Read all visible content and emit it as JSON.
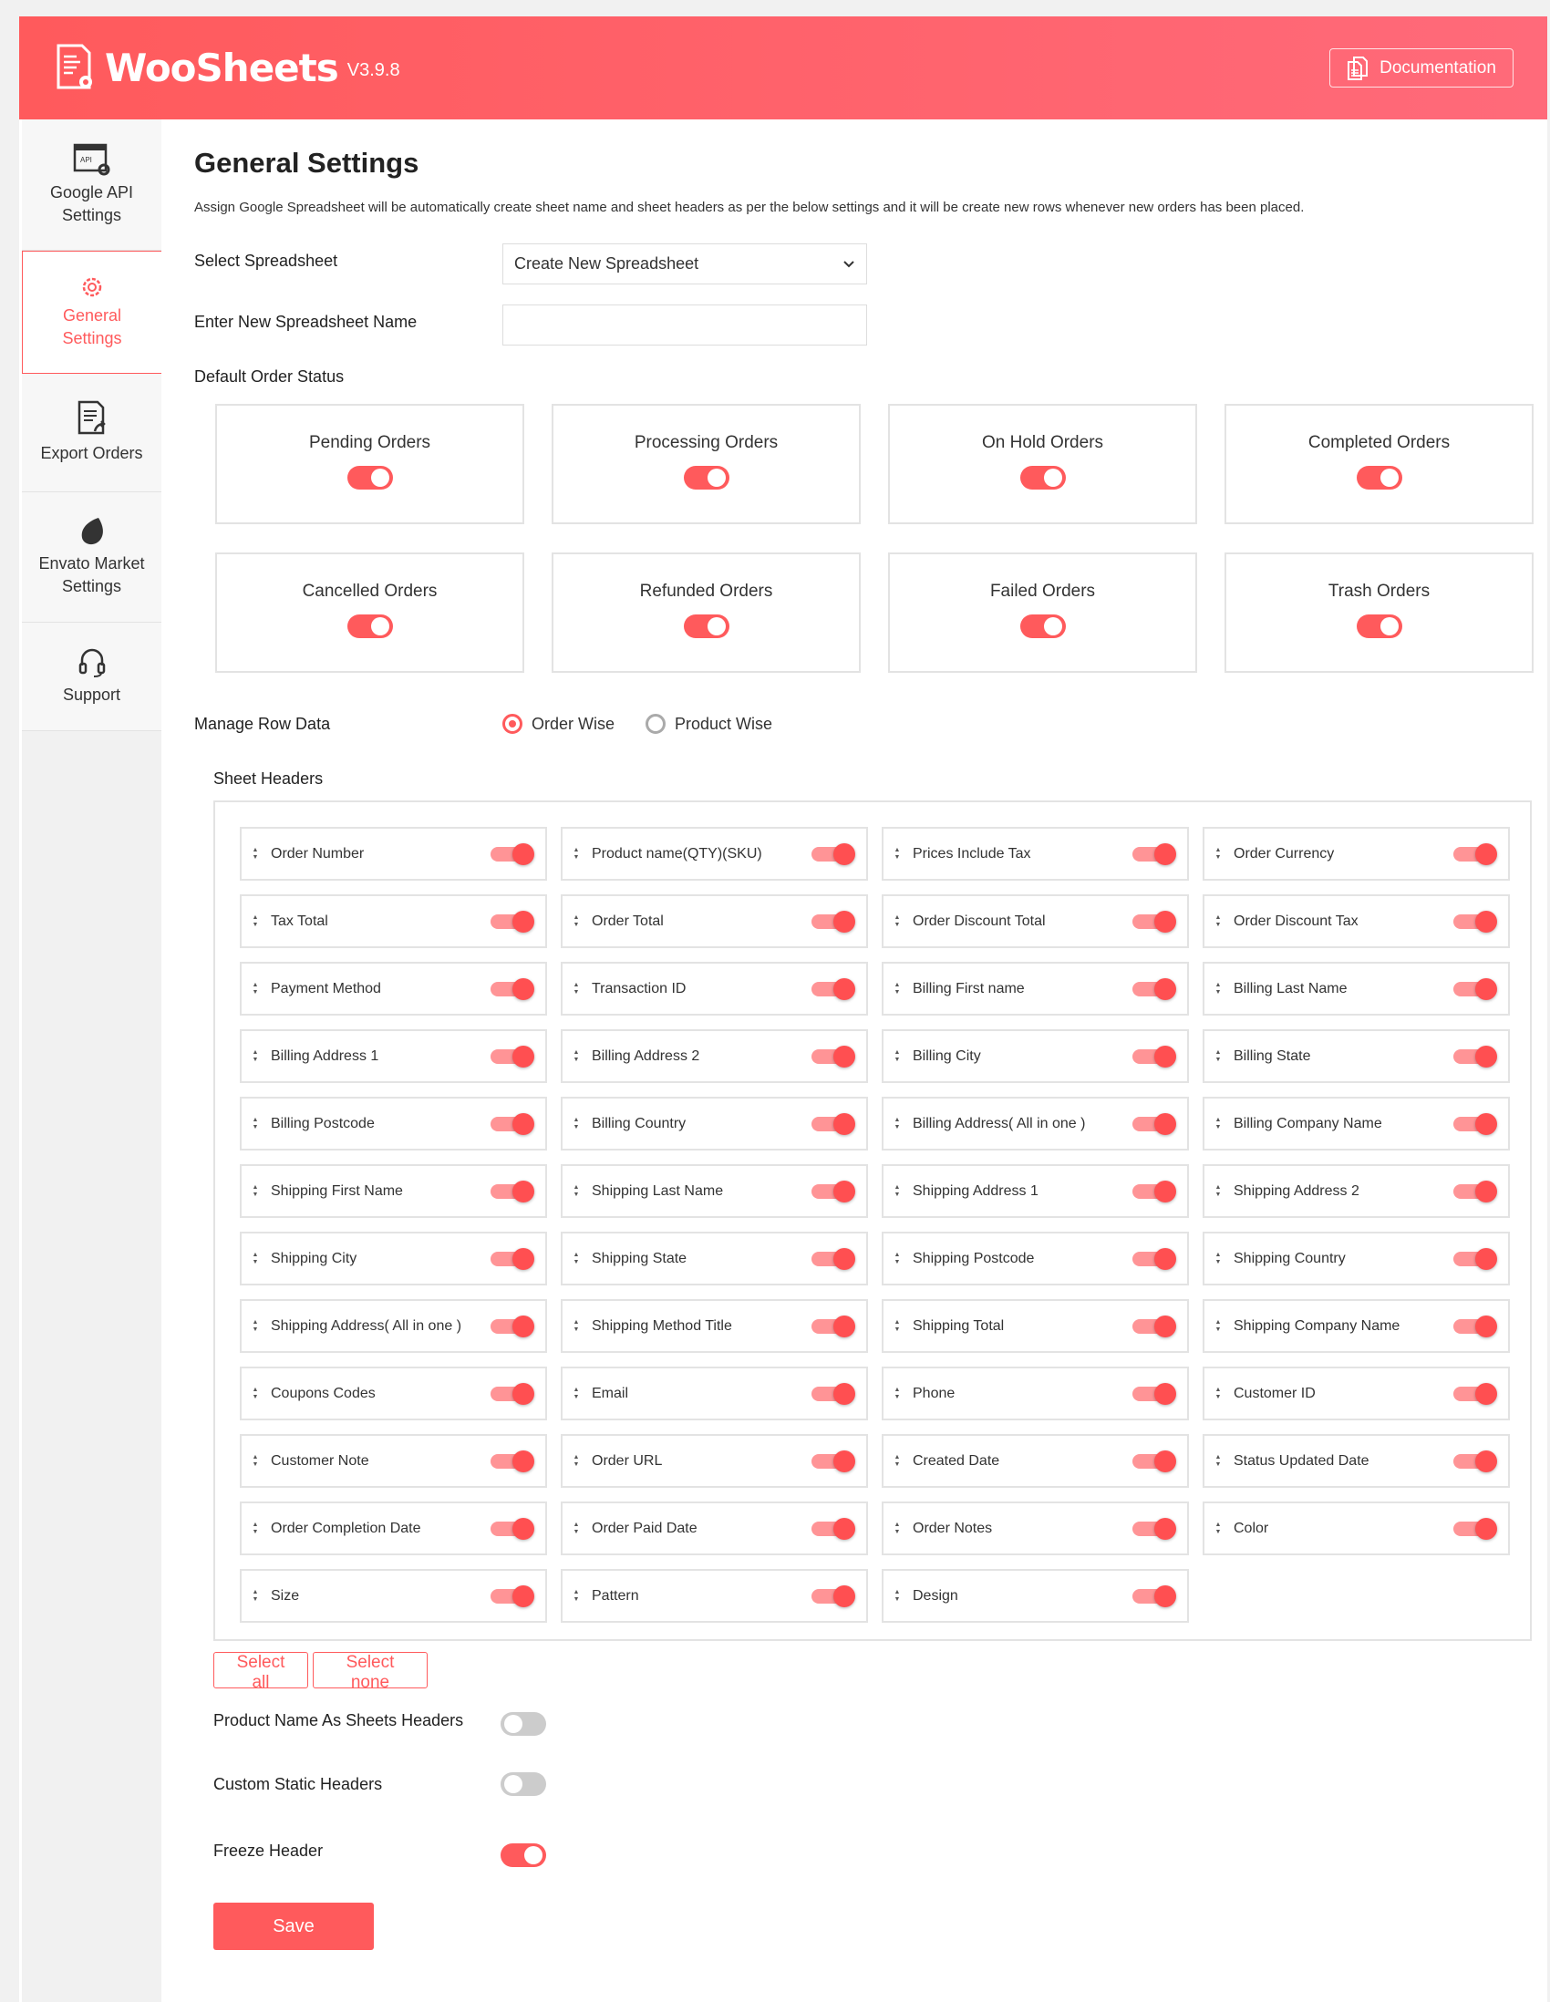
{
  "header": {
    "brand": "WooSheets",
    "version": "V3.9.8",
    "documentation": "Documentation",
    "accent": "#ff5a5c"
  },
  "sidebar": {
    "items": [
      {
        "label1": "Google API",
        "label2": "Settings",
        "icon": "api-settings-icon"
      },
      {
        "label1": "General",
        "label2": "Settings",
        "icon": "gear-icon",
        "active": true
      },
      {
        "label1": "Export Orders",
        "label2": "",
        "icon": "export-icon"
      },
      {
        "label1": "Envato Market",
        "label2": "Settings",
        "icon": "envato-leaf-icon"
      },
      {
        "label1": "Support",
        "label2": "",
        "icon": "headset-icon"
      }
    ]
  },
  "main": {
    "title": "General Settings",
    "description": "Assign Google Spreadsheet will be automatically create sheet name and sheet headers as per the below settings and it will be create new rows whenever new orders has been placed.",
    "select_spreadsheet_label": "Select Spreadsheet",
    "select_spreadsheet_value": "Create New Spreadsheet",
    "new_name_label": "Enter New Spreadsheet Name",
    "new_name_value": "",
    "default_status_label": "Default Order Status",
    "statuses": [
      {
        "label": "Pending Orders",
        "on": true
      },
      {
        "label": "Processing Orders",
        "on": true
      },
      {
        "label": "On Hold Orders",
        "on": true
      },
      {
        "label": "Completed Orders",
        "on": true
      },
      {
        "label": "Cancelled Orders",
        "on": true
      },
      {
        "label": "Refunded Orders",
        "on": true
      },
      {
        "label": "Failed Orders",
        "on": true
      },
      {
        "label": "Trash Orders",
        "on": true
      }
    ],
    "manage_row_label": "Manage Row Data",
    "manage_row_options": [
      {
        "label": "Order Wise",
        "selected": true
      },
      {
        "label": "Product Wise",
        "selected": false
      }
    ],
    "sheet_headers_label": "Sheet Headers",
    "headers": [
      "Order Number",
      "Product name(QTY)(SKU)",
      "Prices Include Tax",
      "Order Currency",
      "Tax Total",
      "Order Total",
      "Order Discount Total",
      "Order Discount Tax",
      "Payment Method",
      "Transaction ID",
      "Billing First name",
      "Billing Last Name",
      "Billing Address 1",
      "Billing Address 2",
      "Billing City",
      "Billing State",
      "Billing Postcode",
      "Billing Country",
      "Billing Address( All in one )",
      "Billing Company Name",
      "Shipping First Name",
      "Shipping Last Name",
      "Shipping Address 1",
      "Shipping Address 2",
      "Shipping City",
      "Shipping State",
      "Shipping Postcode",
      "Shipping Country",
      "Shipping Address( All in one )",
      "Shipping Method Title",
      "Shipping Total",
      "Shipping Company Name",
      "Coupons Codes",
      "Email",
      "Phone",
      "Customer ID",
      "Customer Note",
      "Order URL",
      "Created Date",
      "Status Updated Date",
      "Order Completion Date",
      "Order Paid Date",
      "Order Notes",
      "Color",
      "Size",
      "Pattern",
      "Design"
    ],
    "select_all": "Select all",
    "select_none": "Select none",
    "product_name_headers_label": "Product Name As Sheets Headers",
    "product_name_headers_on": false,
    "custom_static_label": "Custom Static Headers",
    "custom_static_on": false,
    "freeze_header_label": "Freeze Header",
    "freeze_header_on": true,
    "save": "Save"
  }
}
